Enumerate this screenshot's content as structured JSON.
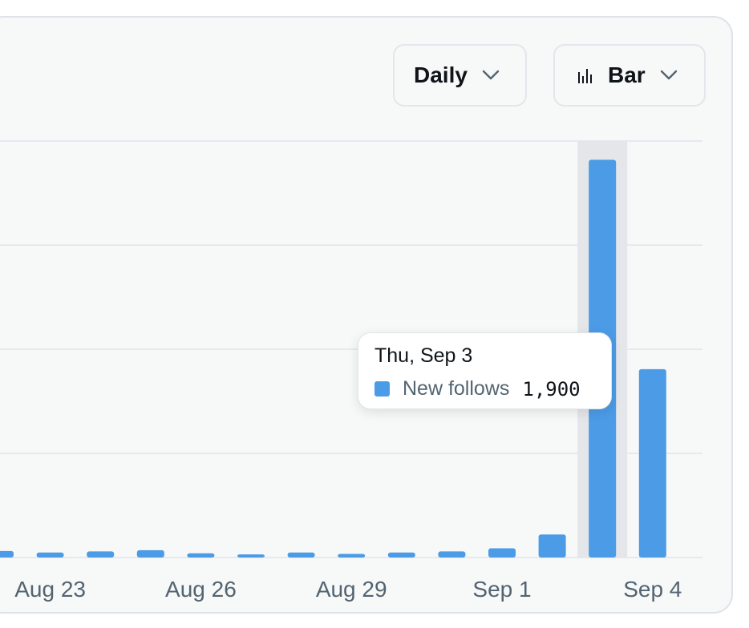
{
  "controls": {
    "interval": {
      "selected": "Daily"
    },
    "chart_type": {
      "selected": "Bar",
      "icon": "bar-chart-icon"
    }
  },
  "colors": {
    "bar": "#4c9be6",
    "hover_band": "#e4e6e9",
    "grid": "#e1e6ea",
    "card_bg": "#f7f8f8"
  },
  "chart_data": {
    "type": "bar",
    "x_tick_labels": [
      "Aug 23",
      "Aug 26",
      "Aug 29",
      "Sep 1",
      "Sep 4"
    ],
    "categories": [
      "Aug 22",
      "Aug 23",
      "Aug 24",
      "Aug 25",
      "Aug 26",
      "Aug 27",
      "Aug 28",
      "Aug 29",
      "Aug 30",
      "Aug 31",
      "Sep 1",
      "Sep 2",
      "Sep 3",
      "Sep 4"
    ],
    "series": [
      {
        "name": "New follows",
        "values": [
          31,
          24,
          29,
          35,
          20,
          15,
          24,
          17,
          24,
          29,
          44,
          110,
          1900,
          900
        ]
      }
    ],
    "ylim": [
      0,
      1990
    ],
    "grid": true,
    "gridlines": 4,
    "highlighted_category": "Sep 3",
    "tooltip": {
      "date": "Thu, Sep 3",
      "series": "New follows",
      "value": "1,900"
    }
  }
}
